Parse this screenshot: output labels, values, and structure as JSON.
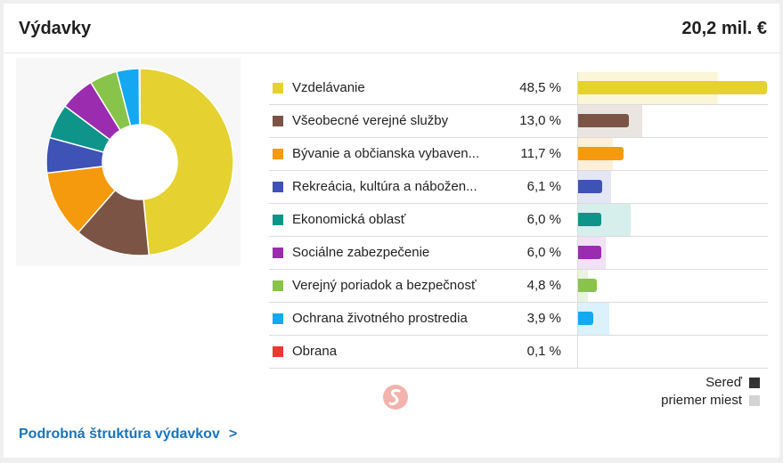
{
  "header": {
    "title": "Výdavky",
    "total": "20,2 mil. €"
  },
  "chart_data": {
    "type": "pie",
    "title": "Výdavky",
    "categories": [
      "Vzdelávanie",
      "Všeobecné verejné služby",
      "Bývanie a občianska vybaven...",
      "Rekreácia, kultúra a nábožen...",
      "Ekonomická oblasť",
      "Sociálne zabezpečenie",
      "Verejný poriadok a bezpečnosť",
      "Ochrana životného prostredia",
      "Obrana"
    ],
    "series": [
      {
        "name": "Sereď",
        "values": [
          48.5,
          13.0,
          11.7,
          6.1,
          6.0,
          6.0,
          4.8,
          3.9,
          0.1
        ]
      },
      {
        "name": "priemer miest",
        "values": [
          36.0,
          16.5,
          9.0,
          8.5,
          13.5,
          7.0,
          2.5,
          8.0,
          0.0
        ]
      }
    ],
    "percent_labels": [
      "48,5 %",
      "13,0 %",
      "11,7 %",
      "6,1 %",
      "6,0 %",
      "6,0 %",
      "4,8 %",
      "3,9 %",
      "0,1 %"
    ],
    "colors": [
      "#e5d130",
      "#7b5446",
      "#f59a0c",
      "#3f52b5",
      "#0e9488",
      "#9b2cb0",
      "#88c34a",
      "#13a8ef",
      "#e83a32"
    ],
    "avg_colors": [
      "#fbf6d8",
      "#ebe5e2",
      "#fdefd9",
      "#e4e6f4",
      "#d6efec",
      "#f1e1f4",
      "#e9f4de",
      "#dbf1fc",
      "#fbdddb"
    ],
    "legend_placement": "bottom-right"
  },
  "legend": {
    "items": [
      {
        "label": "Sereď",
        "color": "#333333"
      },
      {
        "label": "priemer miest",
        "color": "#d3d3d3"
      }
    ]
  },
  "footer": {
    "link_label": "Podrobná štruktúra výdavkov",
    "chevron": ">"
  }
}
